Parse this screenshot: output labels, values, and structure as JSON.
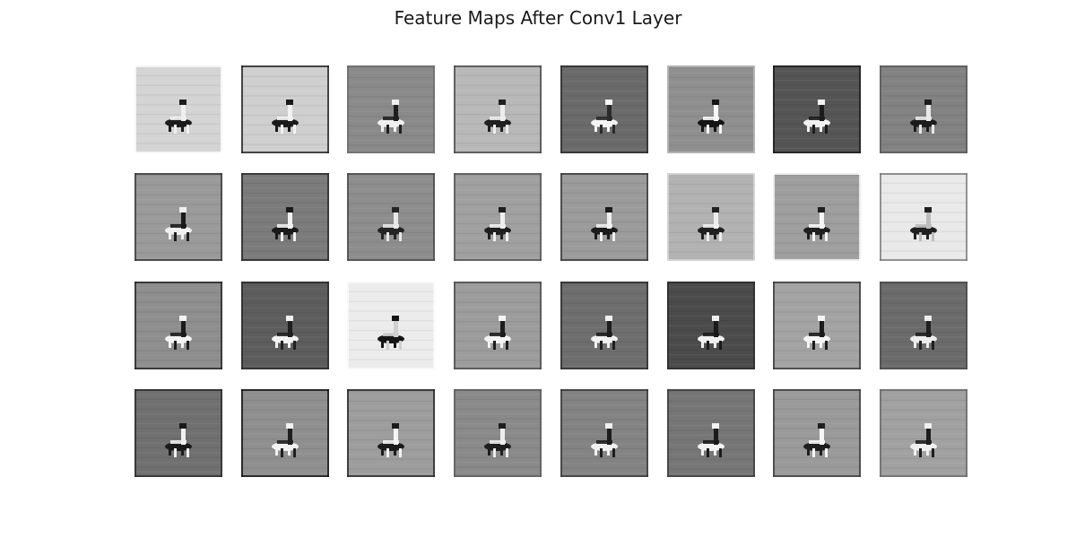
{
  "title": "Feature Maps After Conv1 Layer",
  "grid": {
    "rows": 4,
    "cols": 8
  },
  "colormap": "gray",
  "maps": [
    {
      "bg": "#d4d4d4",
      "subject": "#1c1c1c",
      "accent": "#efefef",
      "edge": "#ffffff"
    },
    {
      "bg": "#cfcfcf",
      "subject": "#1a1a1a",
      "accent": "#f2f2f2",
      "edge": "#222222"
    },
    {
      "bg": "#8a8a8a",
      "subject": "#f0f0f0",
      "accent": "#1e1e1e",
      "edge": "#6e6e6e"
    },
    {
      "bg": "#b8b8b8",
      "subject": "#202020",
      "accent": "#ededed",
      "edge": "#4a4a4a"
    },
    {
      "bg": "#6a6a6a",
      "subject": "#f4f4f4",
      "accent": "#2a2a2a",
      "edge": "#2c2c2c"
    },
    {
      "bg": "#8f8f8f",
      "subject": "#151515",
      "accent": "#f7f7f7",
      "edge": "#bcbcbc"
    },
    {
      "bg": "#555555",
      "subject": "#f2f2f2",
      "accent": "#1b1b1b",
      "edge": "#1c1c1c"
    },
    {
      "bg": "#828282",
      "subject": "#1c1c1c",
      "accent": "#e9e9e9",
      "edge": "#5a5a5a"
    },
    {
      "bg": "#9a9a9a",
      "subject": "#f0f0f0",
      "accent": "#1b1b1b",
      "edge": "#3a3a3a"
    },
    {
      "bg": "#7b7b7b",
      "subject": "#1a1a1a",
      "accent": "#f1f1f1",
      "edge": "#2a2a2a"
    },
    {
      "bg": "#8d8d8d",
      "subject": "#242424",
      "accent": "#e8e8e8",
      "edge": "#4b4b4b"
    },
    {
      "bg": "#a0a0a0",
      "subject": "#1e1e1e",
      "accent": "#efefef",
      "edge": "#555555"
    },
    {
      "bg": "#9b9b9b",
      "subject": "#1b1b1b",
      "accent": "#f0f0f0",
      "edge": "#3a3a3a"
    },
    {
      "bg": "#b2b2b2",
      "subject": "#202020",
      "accent": "#ededed",
      "edge": "#d9d9d9"
    },
    {
      "bg": "#9e9e9e",
      "subject": "#1f1f1f",
      "accent": "#f6f6f6",
      "edge": "#ffffff"
    },
    {
      "bg": "#e9e9e9",
      "subject": "#202020",
      "accent": "#bcbcbc",
      "edge": "#7a7a7a"
    },
    {
      "bg": "#8e8e8e",
      "subject": "#f3f3f3",
      "accent": "#1c1c1c",
      "edge": "#262626"
    },
    {
      "bg": "#5d5d5d",
      "subject": "#f2f2f2",
      "accent": "#1f1f1f",
      "edge": "#2a2a2a"
    },
    {
      "bg": "#ececec",
      "subject": "#151515",
      "accent": "#cfcfcf",
      "edge": "#fbfbfb"
    },
    {
      "bg": "#9c9c9c",
      "subject": "#f3f3f3",
      "accent": "#1d1d1d",
      "edge": "#4d4d4d"
    },
    {
      "bg": "#6e6e6e",
      "subject": "#f1f1f1",
      "accent": "#1d1d1d",
      "edge": "#2e2e2e"
    },
    {
      "bg": "#4b4b4b",
      "subject": "#f0f0f0",
      "accent": "#1a1a1a",
      "edge": "#2b2b2b"
    },
    {
      "bg": "#a3a3a3",
      "subject": "#f5f5f5",
      "accent": "#1c1c1c",
      "edge": "#3a3a3a"
    },
    {
      "bg": "#6b6b6b",
      "subject": "#ededed",
      "accent": "#1f1f1f",
      "edge": "#4c4c4c"
    },
    {
      "bg": "#707070",
      "subject": "#1a1a1a",
      "accent": "#f0f0f0",
      "edge": "#2b2b2b"
    },
    {
      "bg": "#8f8f8f",
      "subject": "#f2f2f2",
      "accent": "#1f1f1f",
      "edge": "#111111"
    },
    {
      "bg": "#9d9d9d",
      "subject": "#1b1b1b",
      "accent": "#f4f4f4",
      "edge": "#272727"
    },
    {
      "bg": "#8a8a8a",
      "subject": "#1e1e1e",
      "accent": "#ededed",
      "edge": "#5c5c5c"
    },
    {
      "bg": "#838383",
      "subject": "#f0f0f0",
      "accent": "#1d1d1d",
      "edge": "#3a3a3a"
    },
    {
      "bg": "#767676",
      "subject": "#f3f3f3",
      "accent": "#1b1b1b",
      "edge": "#3d3d3d"
    },
    {
      "bg": "#9a9a9a",
      "subject": "#1f1f1f",
      "accent": "#f7f7f7",
      "edge": "#3c3c3c"
    },
    {
      "bg": "#a1a1a1",
      "subject": "#f0f0f0",
      "accent": "#1e1e1e",
      "edge": "#6c6c6c"
    }
  ]
}
